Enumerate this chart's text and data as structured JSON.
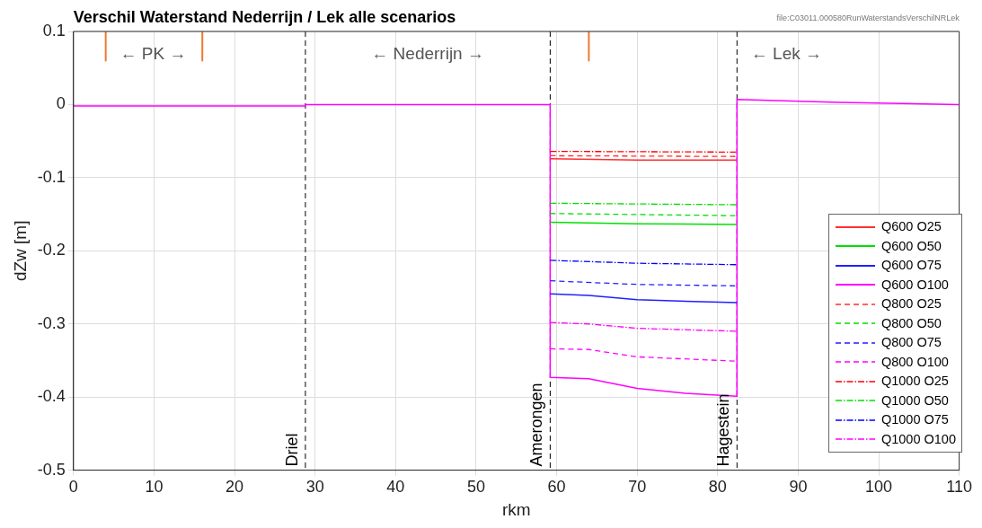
{
  "chart_data": {
    "type": "line",
    "title": "Verschil Waterstand Nederrijn / Lek alle scenarios",
    "xlabel": "rkm",
    "ylabel": "dZw [m]",
    "xlim": [
      0,
      110
    ],
    "xticks": [
      0,
      10,
      20,
      30,
      40,
      50,
      60,
      70,
      80,
      90,
      100,
      110
    ],
    "ylim": [
      -0.5,
      0.1
    ],
    "yticks": [
      -0.5,
      -0.4,
      -0.3,
      -0.2,
      -0.1,
      0,
      0.1
    ],
    "grid": true,
    "legend": "bottom right",
    "annotations": [
      "← PK →",
      "← Nederrijn →",
      "← Lek →",
      "file:C03011.000580RunWaterstandsVerschilNRLek"
    ],
    "ref_lines": [
      {
        "axis": "x",
        "value": 28.8,
        "label": "Driel",
        "color": "#000000",
        "line_style": "dashed"
      },
      {
        "axis": "x",
        "value": 59.2,
        "label": "Amerongen",
        "color": "#000000",
        "line_style": "dashed"
      },
      {
        "axis": "x",
        "value": 82.4,
        "label": "Hagestein",
        "color": "#000000",
        "line_style": "dashed"
      }
    ],
    "series": [
      {
        "name": "Q600 O25",
        "color": "#ff3030",
        "line_style": "solid",
        "x": [
          59.2,
          70,
          82.4
        ],
        "values": [
          -0.074,
          -0.076,
          -0.076
        ]
      },
      {
        "name": "Q600 O50",
        "color": "#00e000",
        "line_style": "solid",
        "x": [
          59.2,
          70,
          82.4
        ],
        "values": [
          -0.161,
          -0.163,
          -0.164
        ]
      },
      {
        "name": "Q600 O75",
        "color": "#2020ff",
        "line_style": "solid",
        "x": [
          59.2,
          64,
          70,
          82.4
        ],
        "values": [
          -0.259,
          -0.261,
          -0.267,
          -0.271
        ]
      },
      {
        "name": "Q600 O100",
        "color": "#ff00ff",
        "line_style": "solid",
        "x": [
          0,
          28.8,
          28.8,
          59.2,
          59.2,
          64,
          70,
          76,
          82.4,
          82.4,
          95,
          110
        ],
        "values": [
          -0.002,
          -0.002,
          0,
          0,
          -0.373,
          -0.375,
          -0.388,
          -0.395,
          -0.399,
          0.007,
          0.003,
          0
        ]
      },
      {
        "name": "Q800 O25",
        "color": "#ff3030",
        "line_style": "dashed",
        "x": [
          59.2,
          82.4
        ],
        "values": [
          -0.07,
          -0.071
        ]
      },
      {
        "name": "Q800 O50",
        "color": "#00e000",
        "line_style": "dashed",
        "x": [
          59.2,
          82.4
        ],
        "values": [
          -0.149,
          -0.152
        ]
      },
      {
        "name": "Q800 O75",
        "color": "#2020ff",
        "line_style": "dashed",
        "x": [
          59.2,
          70,
          82.4
        ],
        "values": [
          -0.241,
          -0.246,
          -0.248
        ]
      },
      {
        "name": "Q800 O100",
        "color": "#ff00ff",
        "line_style": "dashed",
        "x": [
          59.2,
          64,
          70,
          82.4
        ],
        "values": [
          -0.334,
          -0.335,
          -0.345,
          -0.351
        ]
      },
      {
        "name": "Q1000 O25",
        "color": "#ff0000",
        "line_style": "dotted",
        "x": [
          59.2,
          82.4
        ],
        "values": [
          -0.064,
          -0.065
        ]
      },
      {
        "name": "Q1000 O50",
        "color": "#00e000",
        "line_style": "dotted",
        "x": [
          59.2,
          82.4
        ],
        "values": [
          -0.135,
          -0.137
        ]
      },
      {
        "name": "Q1000 O75",
        "color": "#0000ff",
        "line_style": "dotted",
        "x": [
          59.2,
          70,
          82.4
        ],
        "values": [
          -0.213,
          -0.217,
          -0.219
        ]
      },
      {
        "name": "Q1000 O100",
        "color": "#ff00ff",
        "line_style": "dotted",
        "x": [
          59.2,
          64,
          70,
          82.4
        ],
        "values": [
          -0.298,
          -0.3,
          -0.306,
          -0.31
        ]
      },
      {
        "color": "#f07830",
        "line_style": "solid",
        "x": [
          4,
          4,
          null,
          16,
          16,
          null,
          64,
          64
        ],
        "values": [
          0.1,
          0.06,
          null,
          0.1,
          0.06,
          null,
          0.1,
          0.06
        ]
      }
    ]
  }
}
